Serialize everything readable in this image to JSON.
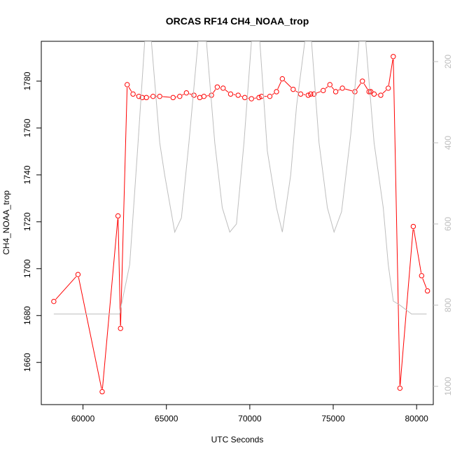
{
  "chart_data": {
    "type": "line",
    "title": "ORCAS RF14 CH4_NOAA_trop",
    "xlabel": "UTC Seconds",
    "ylabel": "CH4_NOAA_trop",
    "xlim": [
      57500,
      81000
    ],
    "ylim": [
      1642,
      1797
    ],
    "x_ticks": [
      60000,
      65000,
      70000,
      75000,
      80000
    ],
    "y_ticks": [
      1660,
      1680,
      1700,
      1720,
      1740,
      1760,
      1780
    ],
    "right_axis": {
      "ylim": [
        1045,
        150
      ],
      "ticks": [
        200,
        400,
        600,
        800,
        1000
      ],
      "color": "#bebebe"
    },
    "series": [
      {
        "color": "#ff0000",
        "marker": "open-circle",
        "x": [
          58250,
          59700,
          61150,
          62100,
          62250,
          62650,
          63000,
          63350,
          63550,
          63800,
          64200,
          64600,
          65400,
          65800,
          66200,
          66650,
          67000,
          67250,
          67700,
          68050,
          68400,
          68850,
          69300,
          69700,
          70100,
          70550,
          70700,
          71200,
          71600,
          71950,
          72600,
          73050,
          73500,
          73650,
          73850,
          74400,
          74800,
          75150,
          75550,
          76300,
          76750,
          77150,
          77250,
          77450,
          77850,
          78300,
          78600,
          79000,
          79800,
          80300,
          80650
        ],
        "y": [
          1686,
          1697.5,
          1647.5,
          1722.5,
          1674.5,
          1778.5,
          1774.5,
          1773.5,
          1773,
          1773,
          1773.5,
          1773.5,
          1773,
          1773.5,
          1775,
          1774,
          1773,
          1773.5,
          1774,
          1777.5,
          1777,
          1774.5,
          1774,
          1773,
          1772.5,
          1773,
          1773.5,
          1773.5,
          1775.5,
          1781,
          1776.5,
          1774.5,
          1774,
          1774.5,
          1774.5,
          1776,
          1778.5,
          1775.5,
          1777,
          1775.5,
          1780,
          1775.5,
          1775.5,
          1774.5,
          1774,
          1777,
          1790.5,
          1649,
          1718,
          1697,
          1690.5
        ]
      },
      {
        "color": "#bebebe",
        "marker": "none",
        "axis": "right",
        "x": [
          58250,
          59500,
          61000,
          62200,
          62300,
          62800,
          63300,
          63700,
          64100,
          64600,
          64900,
          65500,
          65900,
          66350,
          66900,
          67400,
          67900,
          68350,
          68800,
          69200,
          69650,
          70100,
          70600,
          71050,
          71600,
          71950,
          72450,
          72800,
          73300,
          73700,
          74150,
          74650,
          75050,
          75500,
          76050,
          76550,
          76950,
          77450,
          78000,
          78300,
          78600,
          79000,
          79700,
          80600
        ],
        "y": [
          822,
          822,
          822,
          822,
          800,
          700,
          400,
          150,
          150,
          400,
          480,
          620,
          585,
          400,
          150,
          150,
          400,
          560,
          620,
          600,
          400,
          150,
          150,
          420,
          560,
          620,
          480,
          310,
          150,
          150,
          400,
          560,
          620,
          570,
          380,
          150,
          150,
          400,
          560,
          700,
          790,
          800,
          822,
          822
        ]
      }
    ]
  }
}
